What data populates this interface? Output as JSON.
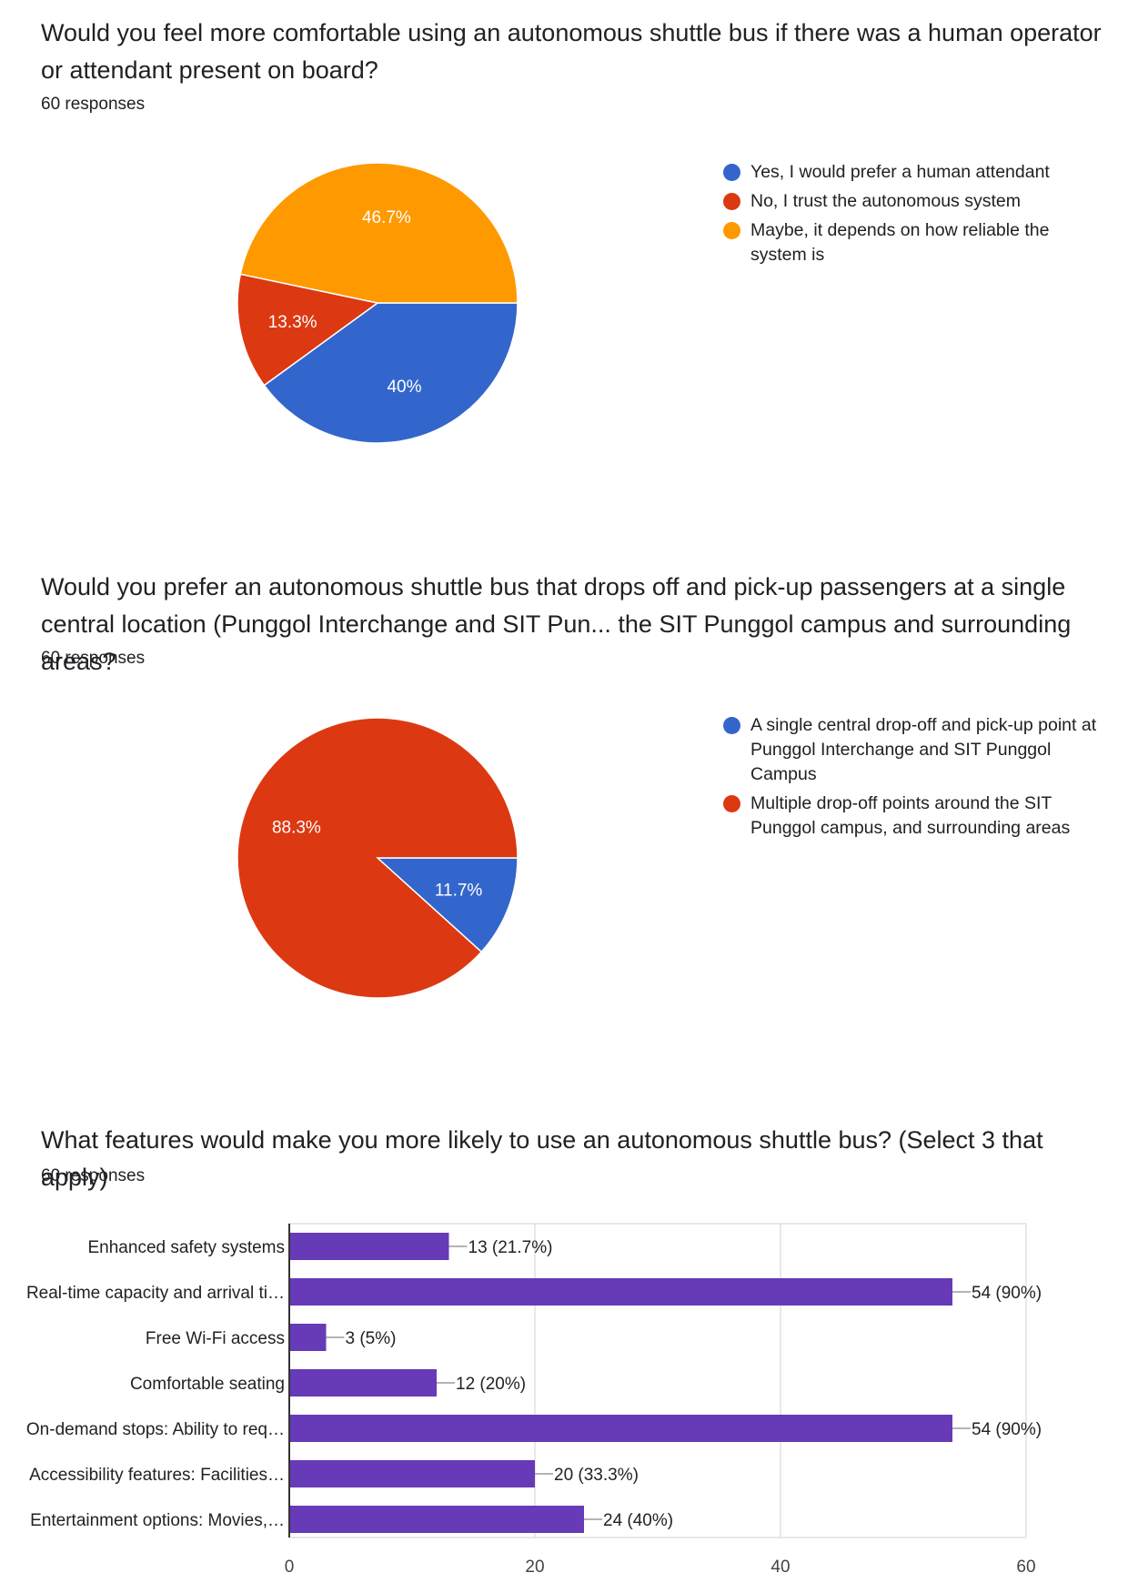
{
  "colors": {
    "blue": "#3366cc",
    "red": "#dc3912",
    "orange": "#ff9900",
    "purple": "#673ab7"
  },
  "questions": [
    {
      "title": "Would you feel more comfortable using an autonomous shuttle bus if there was a human operator or attendant present on board?",
      "responses": "60 responses"
    },
    {
      "title": "Would you prefer an autonomous shuttle bus that drops off and pick-up passengers at a single central location (Punggol Interchange and SIT Pun... the SIT Punggol campus and surrounding areas?",
      "responses": "60 responses"
    },
    {
      "title": "What features would make you more likely to use an autonomous shuttle bus? (Select 3 that apply)",
      "responses": "60 responses"
    }
  ],
  "chart_data": [
    {
      "type": "pie",
      "slices": [
        {
          "label": "Yes, I would prefer a human attendant",
          "value": 40,
          "display": "40%",
          "color": "#3366cc"
        },
        {
          "label": "No, I trust the autonomous system",
          "value": 13.3,
          "display": "13.3%",
          "color": "#dc3912"
        },
        {
          "label": "Maybe, it depends on how reliable the system is",
          "value": 46.7,
          "display": "46.7%",
          "color": "#ff9900"
        }
      ],
      "legend": "right"
    },
    {
      "type": "pie",
      "slices": [
        {
          "label": "A single central drop-off and pick-up point at Punggol Interchange and SIT Punggol Campus",
          "value": 11.7,
          "display": "11.7%",
          "color": "#3366cc"
        },
        {
          "label": "Multiple drop-off points around the SIT Punggol campus, and surrounding areas",
          "value": 88.3,
          "display": "88.3%",
          "color": "#dc3912"
        }
      ],
      "legend": "right"
    },
    {
      "type": "bar",
      "orientation": "horizontal",
      "categories": [
        "Enhanced safety systems",
        "Real-time capacity and arrival ti…",
        "Free Wi-Fi access",
        "Comfortable seating",
        "On-demand stops: Ability to req…",
        "Accessibility features: Facilities…",
        "Entertainment options: Movies,…"
      ],
      "values": [
        13,
        54,
        3,
        12,
        54,
        20,
        24
      ],
      "data_labels": [
        "13 (21.7%)",
        "54 (90%)",
        "3 (5%)",
        "12 (20%)",
        "54 (90%)",
        "20 (33.3%)",
        "24 (40%)"
      ],
      "xlim": [
        0,
        60
      ],
      "xticks": [
        0,
        20,
        40,
        60
      ],
      "grid": true,
      "color": "#673ab7"
    }
  ]
}
